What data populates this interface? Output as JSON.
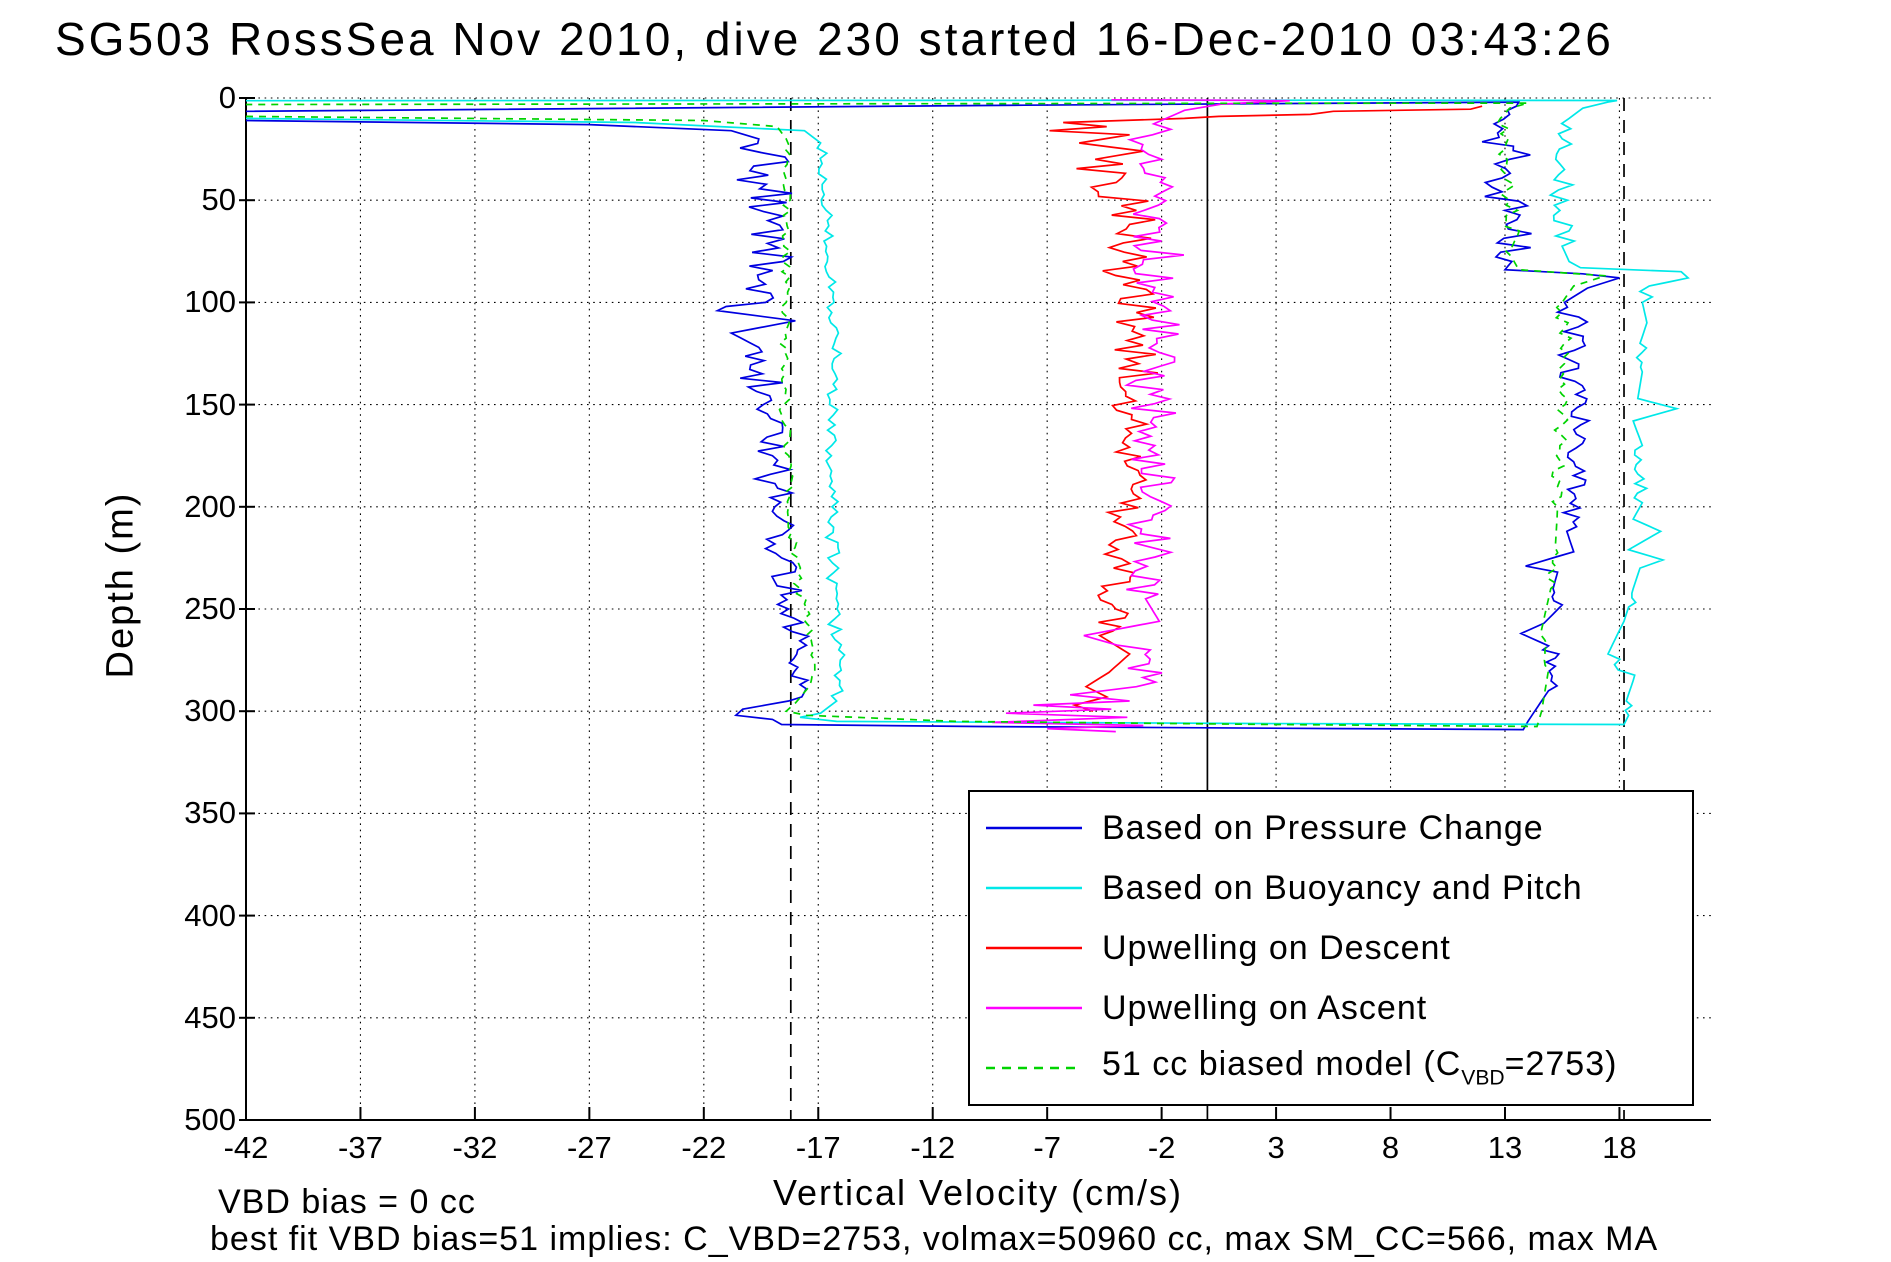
{
  "chart_data": {
    "type": "line",
    "title": "SG503 RossSea Nov 2010, dive 230 started 16-Dec-2010 03:43:26",
    "xlabel": "Vertical Velocity (cm/s)",
    "ylabel": "Depth (m)",
    "xlim": [
      -42,
      22
    ],
    "ylim": [
      0,
      500
    ],
    "y_axis_inverted": true,
    "xticks": [
      -42,
      -37,
      -32,
      -27,
      -22,
      -17,
      -12,
      -7,
      -2,
      3,
      8,
      13,
      18
    ],
    "yticks": [
      0,
      50,
      100,
      150,
      200,
      250,
      300,
      350,
      400,
      450,
      500
    ],
    "grid": "dotted",
    "reference_lines": [
      {
        "x": -18.2,
        "style": "dashed",
        "color": "#000000"
      },
      {
        "x": 0,
        "style": "solid",
        "color": "#000000"
      },
      {
        "x": 18.2,
        "style": "dashed",
        "color": "#000000"
      }
    ],
    "annotations": {
      "vbd_bias": "VBD bias = 0 cc",
      "best_fit": "best fit VBD bias=51 implies: C_VBD=2753, volmax=50960 cc, max SM_CC=566, max MA"
    },
    "legend": {
      "position": "lower-right",
      "items": [
        {
          "color": "#0000E0",
          "style": "solid",
          "label_parts": [
            {
              "t": "Based on Pressure Change"
            }
          ]
        },
        {
          "color": "#00E8E8",
          "style": "solid",
          "label_parts": [
            {
              "t": "Based on Buoyancy and Pitch"
            }
          ]
        },
        {
          "color": "#FF0000",
          "style": "solid",
          "label_parts": [
            {
              "t": "Upwelling on Descent"
            }
          ]
        },
        {
          "color": "#FF00FF",
          "style": "solid",
          "label_parts": [
            {
              "t": "Upwelling on Ascent"
            }
          ]
        },
        {
          "color": "#00D300",
          "style": "dashed",
          "label_parts": [
            {
              "t": "51 cc biased model (C"
            },
            {
              "t": "VBD",
              "sub": true
            },
            {
              "t": "=2753)"
            }
          ]
        }
      ]
    },
    "series": [
      {
        "name": "Based on Pressure Change",
        "color": "#0000E0",
        "style": "solid",
        "step": 2.2,
        "points": [
          [
            11,
            -42
          ],
          [
            13,
            -27
          ],
          [
            16,
            -20.8
          ],
          [
            20,
            -19.6,
            1.2
          ],
          [
            60,
            -19.2,
            1.2
          ],
          [
            100,
            -19.3,
            1.1
          ],
          [
            104,
            -21.4
          ],
          [
            109,
            -18.0
          ],
          [
            115,
            -20.8
          ],
          [
            122,
            -19.6,
            1.0
          ],
          [
            150,
            -19.4,
            0.9
          ],
          [
            175,
            -19.0,
            0.9
          ],
          [
            200,
            -18.9,
            0.8
          ],
          [
            225,
            -18.6,
            0.7
          ],
          [
            250,
            -18.3,
            0.6
          ],
          [
            270,
            -17.9,
            0.5
          ],
          [
            287,
            -17.8,
            0.5
          ],
          [
            295,
            -18.3
          ],
          [
            299,
            -20.3
          ],
          [
            302,
            -20.6
          ],
          [
            304,
            -19.0
          ],
          [
            306.5,
            -18.6
          ],
          [
            307.5,
            -10
          ],
          [
            308.5,
            6
          ],
          [
            309,
            13.8
          ],
          [
            305,
            14.0
          ],
          [
            300,
            14.3
          ],
          [
            290,
            14.9,
            0.4
          ],
          [
            278,
            15.2,
            0.4
          ],
          [
            268,
            14.9
          ],
          [
            262,
            13.7
          ],
          [
            257,
            14.7
          ],
          [
            248,
            15.5,
            0.4
          ],
          [
            240,
            15.1
          ],
          [
            232,
            15.3
          ],
          [
            229,
            13.9
          ],
          [
            222,
            16.0
          ],
          [
            212,
            15.7,
            0.5
          ],
          [
            196,
            16.1,
            0.5
          ],
          [
            178,
            16.0,
            0.5
          ],
          [
            160,
            16.3,
            0.5
          ],
          [
            145,
            16.1,
            0.6
          ],
          [
            128,
            15.8,
            0.6
          ],
          [
            112,
            16.2,
            0.6
          ],
          [
            100,
            15.6
          ],
          [
            93,
            16.6
          ],
          [
            88,
            18.0
          ],
          [
            86,
            16.4
          ],
          [
            84,
            13.0
          ],
          [
            80,
            13.3,
            1.1
          ],
          [
            55,
            13.0,
            1.1
          ],
          [
            30,
            13.2,
            1.1
          ],
          [
            15,
            12.9,
            0.9
          ],
          [
            8,
            13.2,
            0.6
          ],
          [
            4,
            13.5
          ],
          [
            2,
            13.6
          ],
          [
            3.5,
            -8
          ],
          [
            6.5,
            -42
          ]
        ]
      },
      {
        "name": "Based on Buoyancy and Pitch",
        "color": "#00E8E8",
        "style": "solid",
        "step": 2.5,
        "points": [
          [
            10,
            -42
          ],
          [
            12,
            -25
          ],
          [
            16,
            -17.6
          ],
          [
            22,
            -16.9,
            0.25
          ],
          [
            60,
            -16.6,
            0.25
          ],
          [
            120,
            -16.3,
            0.3
          ],
          [
            200,
            -16.4,
            0.3
          ],
          [
            255,
            -16.3,
            0.3
          ],
          [
            280,
            -16.0,
            0.3
          ],
          [
            295,
            -16.2
          ],
          [
            301,
            -16.9
          ],
          [
            303,
            -17.8
          ],
          [
            305,
            -16.2
          ],
          [
            306,
            2
          ],
          [
            306.5,
            18.2
          ],
          [
            302,
            18.4,
            0.3
          ],
          [
            295,
            18.3
          ],
          [
            285,
            18.6,
            0.3
          ],
          [
            272,
            17.5
          ],
          [
            265,
            17.8
          ],
          [
            256,
            18.2
          ],
          [
            249,
            18.4,
            0.3
          ],
          [
            240,
            18.6
          ],
          [
            230,
            18.9
          ],
          [
            226,
            19.9
          ],
          [
            221,
            18.4
          ],
          [
            212,
            19.8
          ],
          [
            206,
            18.6
          ],
          [
            198,
            19.0,
            0.35
          ],
          [
            184,
            18.8,
            0.35
          ],
          [
            170,
            19.0
          ],
          [
            158,
            18.6
          ],
          [
            152,
            20.5
          ],
          [
            147,
            18.8
          ],
          [
            134,
            19.0,
            0.35
          ],
          [
            120,
            18.9
          ],
          [
            110,
            19.2
          ],
          [
            100,
            19.0,
            0.4
          ],
          [
            92,
            19.3
          ],
          [
            88,
            21.0
          ],
          [
            85,
            20.7
          ],
          [
            83,
            16.3
          ],
          [
            80,
            15.8
          ],
          [
            75,
            15.6,
            0.5
          ],
          [
            55,
            15.4,
            0.5
          ],
          [
            35,
            15.6,
            0.5
          ],
          [
            20,
            15.5,
            0.4
          ],
          [
            10,
            15.8
          ],
          [
            5,
            16.4
          ],
          [
            2,
            17.5
          ],
          [
            1.2,
            17.9
          ],
          [
            1.1,
            5
          ],
          [
            1.3,
            -42
          ]
        ]
      },
      {
        "name": "Upwelling on Descent",
        "color": "#FF0000",
        "style": "solid",
        "step": 2.3,
        "points": [
          [
            4,
            12
          ],
          [
            5.5,
            11.5
          ],
          [
            6.5,
            5.5
          ],
          [
            8,
            4.5
          ],
          [
            9,
            0.5
          ],
          [
            10,
            -1
          ],
          [
            12,
            -6.3
          ],
          [
            14,
            -4.4
          ],
          [
            16,
            -6.9
          ],
          [
            18,
            -3.4
          ],
          [
            22,
            -5.6
          ],
          [
            26,
            -2.8
          ],
          [
            30,
            -4.9,
            1.2
          ],
          [
            55,
            -3.1,
            1.2
          ],
          [
            80,
            -3.7,
            1.1
          ],
          [
            105,
            -3.1,
            1.1
          ],
          [
            130,
            -3.0,
            1.0
          ],
          [
            155,
            -3.3,
            1.0
          ],
          [
            180,
            -3.5,
            0.9
          ],
          [
            205,
            -3.8,
            0.9
          ],
          [
            230,
            -4.1,
            0.9
          ],
          [
            250,
            -4.0,
            0.8
          ],
          [
            263,
            -4.7
          ],
          [
            272,
            -3.4
          ],
          [
            281,
            -4.3
          ],
          [
            288,
            -5.3
          ],
          [
            293,
            -4.4
          ],
          [
            297,
            -5.8
          ],
          [
            300,
            -5.0
          ]
        ]
      },
      {
        "name": "Upwelling on Ascent",
        "color": "#FF00FF",
        "style": "solid",
        "step": 2.3,
        "points": [
          [
            310,
            -4.0
          ],
          [
            308.5,
            -7.0
          ],
          [
            307,
            -2.8
          ],
          [
            305.5,
            -9.4
          ],
          [
            303,
            -3.5
          ],
          [
            301,
            -8.8
          ],
          [
            299,
            -4.2
          ],
          [
            297,
            -7.6
          ],
          [
            295,
            -3.4
          ],
          [
            292,
            -6.0
          ],
          [
            288,
            -3.1,
            0.9
          ],
          [
            270,
            -2.5,
            0.9
          ],
          [
            263,
            -5.4
          ],
          [
            256,
            -2.1
          ],
          [
            245,
            -2.7,
            0.9
          ],
          [
            220,
            -2.4,
            1.0
          ],
          [
            195,
            -2.5,
            1.0
          ],
          [
            170,
            -2.3,
            1.1
          ],
          [
            145,
            -2.5,
            1.1
          ],
          [
            120,
            -2.2,
            1.1
          ],
          [
            95,
            -2.4,
            1.2
          ],
          [
            70,
            -2.0,
            1.2
          ],
          [
            48,
            -2.3,
            1.2
          ],
          [
            30,
            -2.0,
            1.2
          ],
          [
            18,
            -2.4,
            1.0
          ],
          [
            10,
            -1.8
          ],
          [
            6,
            -1.0
          ],
          [
            3,
            0.6
          ],
          [
            1.3,
            3.6
          ],
          [
            1.1,
            0.5
          ],
          [
            0.9,
            -4.2
          ]
        ]
      },
      {
        "name": "51 cc biased model (C_VBD=2753)",
        "color": "#00D300",
        "style": "dashed",
        "step": 2.5,
        "points": [
          [
            9,
            -42
          ],
          [
            11,
            -22
          ],
          [
            14,
            -18.8
          ],
          [
            20,
            -18.4,
            0.2
          ],
          [
            60,
            -18.4,
            0.2
          ],
          [
            100,
            -18.4,
            0.25
          ],
          [
            150,
            -18.5,
            0.25
          ],
          [
            200,
            -18.3,
            0.25
          ],
          [
            240,
            -17.8,
            0.2
          ],
          [
            270,
            -17.2,
            0.2
          ],
          [
            288,
            -17.4
          ],
          [
            296,
            -18.0
          ],
          [
            300,
            -18.4
          ],
          [
            302,
            -17.5
          ],
          [
            305,
            -11
          ],
          [
            306.5,
            3
          ],
          [
            307.5,
            14.4
          ],
          [
            300,
            14.6
          ],
          [
            280,
            14.9,
            0.25
          ],
          [
            260,
            14.6
          ],
          [
            240,
            15.0,
            0.25
          ],
          [
            220,
            15.2
          ],
          [
            200,
            15.3,
            0.3
          ],
          [
            170,
            15.4,
            0.3
          ],
          [
            140,
            15.6,
            0.3
          ],
          [
            120,
            15.6,
            0.3
          ],
          [
            100,
            15.5
          ],
          [
            92,
            16.0
          ],
          [
            87,
            17.4
          ],
          [
            84,
            13.6
          ],
          [
            80,
            13.4,
            0.35
          ],
          [
            50,
            13.2,
            0.35
          ],
          [
            25,
            13.0,
            0.3
          ],
          [
            10,
            12.8
          ],
          [
            5,
            13.2
          ],
          [
            2.5,
            14.0
          ],
          [
            2.6,
            2
          ],
          [
            3.2,
            -42
          ]
        ]
      }
    ]
  }
}
